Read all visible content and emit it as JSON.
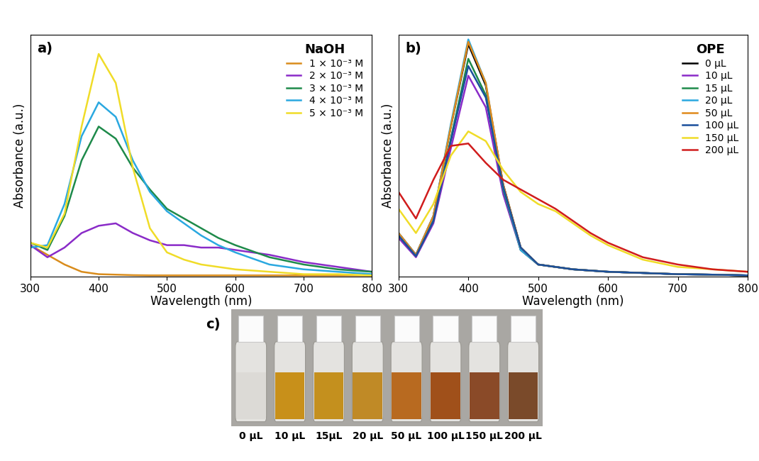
{
  "chart_data": [
    {
      "type": "line",
      "title": "a)",
      "x_label": "Wavelength (nm)",
      "y_label": "Absorbance (a.u.)",
      "x": [
        300,
        325,
        350,
        375,
        400,
        425,
        450,
        475,
        500,
        525,
        550,
        575,
        600,
        650,
        700,
        750,
        800
      ],
      "xlim": [
        300,
        800
      ],
      "xticks": [
        300,
        400,
        500,
        600,
        700,
        800
      ],
      "ylim": [
        0,
        1
      ],
      "yticks": [],
      "tick_labels": "x",
      "legend": "upper right",
      "legend_title": "NaOH",
      "series": [
        {
          "name": "1 × 10⁻³ M",
          "color": "#d98c1c",
          "values": [
            0.13,
            0.09,
            0.05,
            0.02,
            0.01,
            0.008,
            0.006,
            0.005,
            0.005,
            0.005,
            0.005,
            0.005,
            0.005,
            0.005,
            0.005,
            0.005,
            0.005
          ]
        },
        {
          "name": "2 × 10⁻³ M",
          "color": "#8a2bc8",
          "values": [
            0.13,
            0.08,
            0.12,
            0.18,
            0.21,
            0.22,
            0.18,
            0.15,
            0.13,
            0.13,
            0.12,
            0.12,
            0.11,
            0.09,
            0.06,
            0.04,
            0.02
          ]
        },
        {
          "name": "3 × 10⁻³ M",
          "color": "#1e8a4a",
          "values": [
            0.14,
            0.11,
            0.25,
            0.48,
            0.62,
            0.57,
            0.45,
            0.36,
            0.28,
            0.24,
            0.2,
            0.16,
            0.13,
            0.08,
            0.05,
            0.03,
            0.02
          ]
        },
        {
          "name": "4 × 10⁻³ M",
          "color": "#2aa8e0",
          "values": [
            0.12,
            0.13,
            0.3,
            0.58,
            0.72,
            0.66,
            0.48,
            0.35,
            0.27,
            0.22,
            0.17,
            0.13,
            0.1,
            0.05,
            0.03,
            0.02,
            0.01
          ]
        },
        {
          "name": "5 × 10⁻³ M",
          "color": "#f0dc28",
          "values": [
            0.14,
            0.12,
            0.26,
            0.62,
            0.92,
            0.8,
            0.45,
            0.2,
            0.1,
            0.07,
            0.05,
            0.04,
            0.03,
            0.02,
            0.01,
            0.01,
            0.005
          ]
        }
      ]
    },
    {
      "type": "line",
      "title": "b)",
      "x_label": "Wavelength (nm)",
      "y_label": "Absorbance (a.u.)",
      "x": [
        300,
        325,
        350,
        375,
        400,
        425,
        450,
        475,
        500,
        525,
        550,
        575,
        600,
        650,
        700,
        750,
        800
      ],
      "xlim": [
        300,
        800
      ],
      "xticks": [
        300,
        400,
        500,
        600,
        700,
        800
      ],
      "ylim": [
        0,
        1
      ],
      "yticks": [],
      "tick_labels": "x",
      "legend": "upper right",
      "legend_title": "OPE",
      "series": [
        {
          "name": "0 µL",
          "color": "#000000",
          "values": [
            0.18,
            0.09,
            0.25,
            0.62,
            0.96,
            0.79,
            0.38,
            0.12,
            0.05,
            0.04,
            0.03,
            0.025,
            0.02,
            0.015,
            0.01,
            0.008,
            0.005
          ]
        },
        {
          "name": "10 µL",
          "color": "#8a2bc8",
          "values": [
            0.16,
            0.08,
            0.22,
            0.53,
            0.83,
            0.7,
            0.34,
            0.11,
            0.05,
            0.04,
            0.03,
            0.025,
            0.02,
            0.015,
            0.01,
            0.008,
            0.005
          ]
        },
        {
          "name": "15 µL",
          "color": "#1e8a4a",
          "values": [
            0.17,
            0.085,
            0.23,
            0.57,
            0.9,
            0.75,
            0.36,
            0.11,
            0.05,
            0.04,
            0.03,
            0.025,
            0.02,
            0.015,
            0.01,
            0.008,
            0.005
          ]
        },
        {
          "name": "20 µL",
          "color": "#2aa8e0",
          "values": [
            0.18,
            0.09,
            0.25,
            0.63,
            0.98,
            0.8,
            0.37,
            0.11,
            0.05,
            0.04,
            0.03,
            0.025,
            0.02,
            0.015,
            0.01,
            0.008,
            0.005
          ]
        },
        {
          "name": "50 µL",
          "color": "#e08a1c",
          "values": [
            0.18,
            0.09,
            0.25,
            0.62,
            0.97,
            0.8,
            0.38,
            0.12,
            0.05,
            0.04,
            0.03,
            0.025,
            0.02,
            0.015,
            0.01,
            0.008,
            0.005
          ]
        },
        {
          "name": "100 µL",
          "color": "#1a4f9c",
          "values": [
            0.17,
            0.085,
            0.23,
            0.56,
            0.87,
            0.74,
            0.37,
            0.12,
            0.05,
            0.04,
            0.03,
            0.025,
            0.02,
            0.015,
            0.01,
            0.008,
            0.005
          ]
        },
        {
          "name": "150 µL",
          "color": "#f0dc28",
          "values": [
            0.28,
            0.18,
            0.3,
            0.5,
            0.6,
            0.56,
            0.44,
            0.35,
            0.3,
            0.27,
            0.22,
            0.17,
            0.13,
            0.07,
            0.04,
            0.03,
            0.02
          ]
        },
        {
          "name": "200 µL",
          "color": "#d01c1c",
          "values": [
            0.35,
            0.24,
            0.4,
            0.54,
            0.55,
            0.47,
            0.4,
            0.36,
            0.32,
            0.28,
            0.23,
            0.18,
            0.14,
            0.08,
            0.05,
            0.03,
            0.02
          ]
        }
      ]
    }
  ],
  "photo": {
    "label": "c)",
    "vials": [
      {
        "label": "0 µL",
        "color": "#dcdad6"
      },
      {
        "label": "10 µL",
        "color": "#c8901a"
      },
      {
        "label": "15µL",
        "color": "#c4901e"
      },
      {
        "label": "20 µL",
        "color": "#c08a26"
      },
      {
        "label": "50 µL",
        "color": "#b86a20"
      },
      {
        "label": "100 µL",
        "color": "#a0501a"
      },
      {
        "label": "150 µL",
        "color": "#8a4a28"
      },
      {
        "label": "200 µL",
        "color": "#7a4a2a"
      }
    ]
  }
}
